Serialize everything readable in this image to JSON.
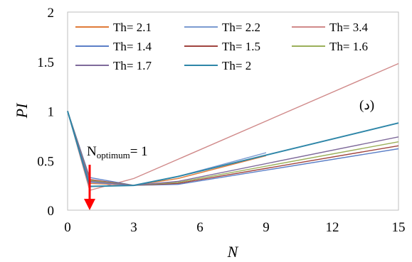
{
  "chart_data": {
    "type": "line",
    "title": "",
    "xlabel": "N",
    "ylabel": "PI",
    "xlim": [
      0,
      15
    ],
    "ylim": [
      0,
      2
    ],
    "x_ticks": [
      "0",
      "3",
      "6",
      "9",
      "12",
      "15"
    ],
    "y_ticks": [
      "0",
      "0.5",
      "1",
      "1.5",
      "2"
    ],
    "grid": false,
    "legend_position": "top",
    "series": [
      {
        "name": "Th= 2.1",
        "color": "#e07b39",
        "points": [
          [
            0,
            1.0
          ],
          [
            1,
            0.27
          ],
          [
            3,
            0.25
          ],
          [
            5,
            0.32
          ],
          [
            9,
            0.55
          ]
        ]
      },
      {
        "name": "Th= 2.2",
        "color": "#7b9bd1",
        "points": [
          [
            0,
            1.0
          ],
          [
            1,
            0.28
          ],
          [
            3,
            0.25
          ],
          [
            5,
            0.34
          ],
          [
            9,
            0.58
          ]
        ]
      },
      {
        "name": "Th= 3.4",
        "color": "#d08a8a",
        "points": [
          [
            0,
            1.0
          ],
          [
            1,
            0.2
          ],
          [
            3,
            0.32
          ],
          [
            15,
            1.48
          ]
        ]
      },
      {
        "name": "Th= 1.4",
        "color": "#5b7fc7",
        "points": [
          [
            0,
            1.0
          ],
          [
            1,
            0.33
          ],
          [
            3,
            0.25
          ],
          [
            5,
            0.26
          ],
          [
            15,
            0.62
          ]
        ]
      },
      {
        "name": "Th= 1.5",
        "color": "#a0443f",
        "points": [
          [
            0,
            1.0
          ],
          [
            1,
            0.31
          ],
          [
            3,
            0.25
          ],
          [
            5,
            0.27
          ],
          [
            15,
            0.65
          ]
        ]
      },
      {
        "name": "Th= 1.6",
        "color": "#9bb05a",
        "points": [
          [
            0,
            1.0
          ],
          [
            1,
            0.3
          ],
          [
            3,
            0.25
          ],
          [
            5,
            0.28
          ],
          [
            15,
            0.69
          ]
        ]
      },
      {
        "name": "Th= 1.7",
        "color": "#7f6a9b",
        "points": [
          [
            0,
            1.0
          ],
          [
            1,
            0.29
          ],
          [
            3,
            0.25
          ],
          [
            5,
            0.29
          ],
          [
            15,
            0.74
          ]
        ]
      },
      {
        "name": "Th= 2",
        "color": "#2e86a8",
        "points": [
          [
            0,
            1.0
          ],
          [
            1,
            0.24
          ],
          [
            3,
            0.25
          ],
          [
            5,
            0.34
          ],
          [
            15,
            0.88
          ]
        ]
      }
    ],
    "annotations": {
      "panel_label": "(د)",
      "optimum_main": "N",
      "optimum_sub": "optimum",
      "optimum_value": "= 1",
      "arrow_target": [
        1,
        0
      ],
      "arrow_color": "#ff0000"
    }
  }
}
